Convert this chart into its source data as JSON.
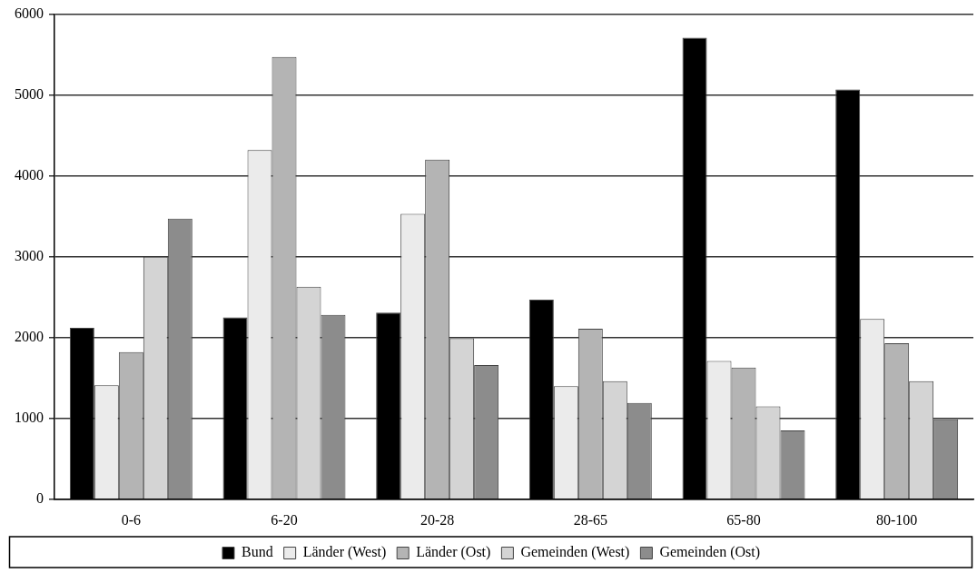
{
  "chart_data": {
    "type": "bar",
    "categories": [
      "0-6",
      "6-20",
      "20-28",
      "28-65",
      "65-80",
      "80-100"
    ],
    "series": [
      {
        "name": "Bund",
        "color": "#000000",
        "values": [
          2120,
          2250,
          2310,
          2470,
          5710,
          5070
        ]
      },
      {
        "name": "Länder (West)",
        "color": "#ebebeb",
        "values": [
          1410,
          4320,
          3530,
          1400,
          1710,
          2230
        ]
      },
      {
        "name": "Länder (Ost)",
        "color": "#b4b4b4",
        "values": [
          1820,
          5470,
          4200,
          2110,
          1630,
          1930
        ]
      },
      {
        "name": "Gemeinden (West)",
        "color": "#d4d4d4",
        "values": [
          3000,
          2630,
          1990,
          1460,
          1150,
          1460
        ]
      },
      {
        "name": "Gemeinden (Ost)",
        "color": "#8c8c8c",
        "values": [
          3470,
          2280,
          1660,
          1190,
          850,
          990
        ]
      }
    ],
    "ylim": [
      0,
      6000
    ],
    "yticks": [
      0,
      1000,
      2000,
      3000,
      4000,
      5000,
      6000
    ],
    "grid": "y",
    "legend": "bottom"
  }
}
